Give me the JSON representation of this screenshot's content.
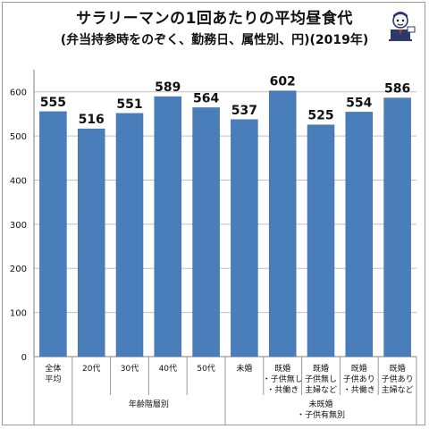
{
  "title": "サラリーマンの1回あたりの平均昼食代",
  "subtitle": "(弁当持参時をのぞく、勤務日、属性別、円)(2019年)",
  "mascot_icon": "salaryman-mascot-icon",
  "colors": {
    "bar": "#4a7ebb",
    "bar_edge": "#3a6aa5",
    "grid": "#bfbfbf",
    "text": "#111111"
  },
  "chart_data": {
    "type": "bar",
    "title": "サラリーマンの1回あたりの平均昼食代",
    "subtitle": "(弁当持参時をのぞく、勤務日、属性別、円)(2019年)",
    "categories": [
      [
        "全体",
        "平均"
      ],
      [
        "20代"
      ],
      [
        "30代"
      ],
      [
        "40代"
      ],
      [
        "50代"
      ],
      [
        "未婚"
      ],
      [
        "既婚",
        "・子供無し",
        "・共働き"
      ],
      [
        "既婚",
        "子供無し",
        "主婦など"
      ],
      [
        "既婚",
        "子供あり",
        "・共働き"
      ],
      [
        "既婚",
        "子供あり",
        "主婦など"
      ]
    ],
    "values": [
      555,
      516,
      551,
      589,
      564,
      537,
      602,
      525,
      554,
      586
    ],
    "group_labels": [
      {
        "label": [
          "年齢階層別"
        ],
        "from": 1,
        "to": 4
      },
      {
        "label": [
          "未既婚",
          "・子供有無別"
        ],
        "from": 5,
        "to": 9
      }
    ],
    "ylim": [
      0,
      650
    ],
    "yticks": [
      0,
      100,
      200,
      300,
      400,
      500,
      600
    ],
    "grid": true,
    "legend": "none"
  }
}
